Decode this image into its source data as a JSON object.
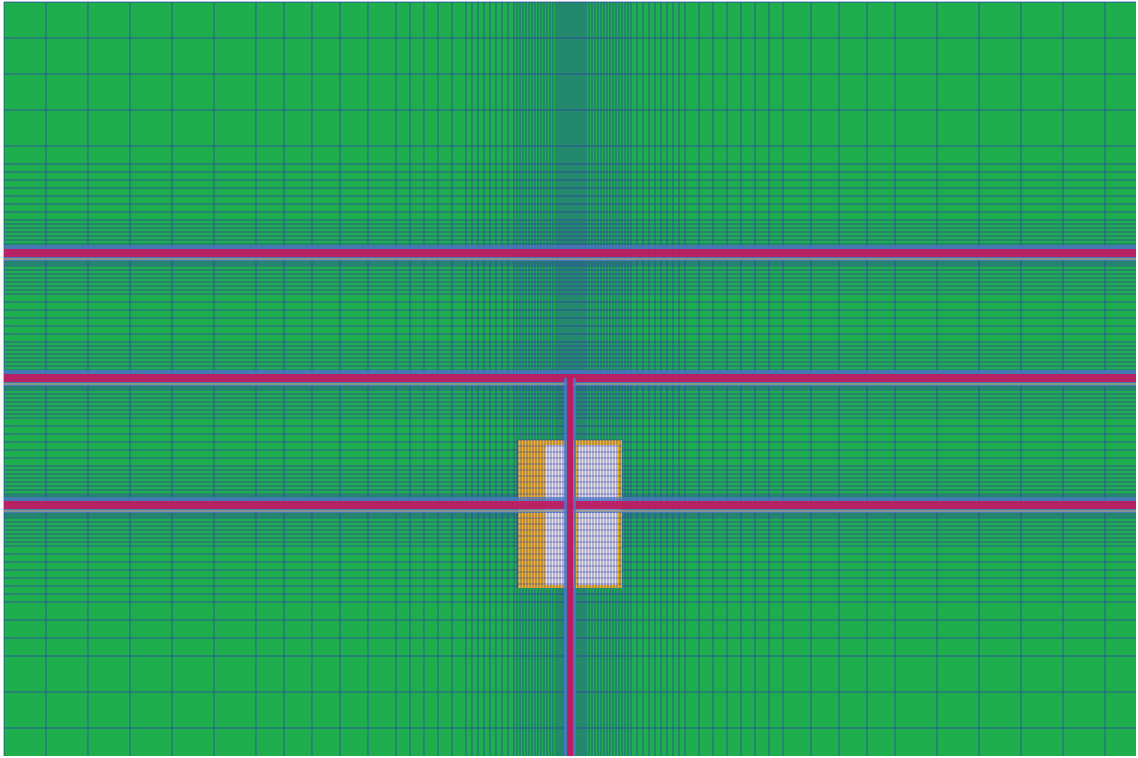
{
  "figure": {
    "kind": "adaptive mesh refinement visualization",
    "colors": {
      "background": "#ffffff",
      "region_fill": "#1fae4d",
      "grid_line": "#2f3fa8",
      "high_refinement": "#c2185b",
      "medium_refinement": "#4f76c9",
      "contact_zone_fill": "#f2b321",
      "contact_zone_light": "#e8e8f8",
      "accent_thin": "#f2c84b"
    },
    "features": {
      "horizontal_bands": 3,
      "vertical_column": 1,
      "contact_blocks": 2
    }
  }
}
